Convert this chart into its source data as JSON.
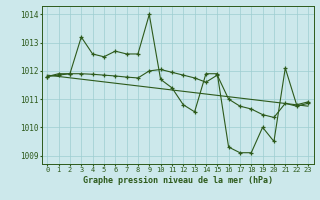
{
  "line1_x": [
    0,
    1,
    2,
    3,
    4,
    5,
    6,
    7,
    8,
    9,
    10,
    11,
    12,
    13,
    14,
    15,
    16,
    17,
    18,
    19,
    20,
    21,
    22,
    23
  ],
  "line1_y": [
    1011.8,
    1011.9,
    1011.9,
    1013.2,
    1012.6,
    1012.5,
    1012.7,
    1012.6,
    1012.6,
    1014.0,
    1011.7,
    1011.4,
    1010.8,
    1010.55,
    1011.9,
    1011.9,
    1009.3,
    1009.1,
    1009.1,
    1010.0,
    1009.5,
    1012.1,
    1010.8,
    1010.9
  ],
  "line2_x": [
    0,
    1,
    2,
    3,
    4,
    5,
    6,
    7,
    8,
    9,
    10,
    11,
    12,
    13,
    14,
    15,
    16,
    17,
    18,
    19,
    20,
    21,
    22,
    23
  ],
  "line2_y": [
    1011.8,
    1011.85,
    1011.9,
    1011.9,
    1011.88,
    1011.85,
    1011.82,
    1011.78,
    1011.75,
    1012.0,
    1012.05,
    1011.95,
    1011.85,
    1011.75,
    1011.6,
    1011.85,
    1011.0,
    1010.75,
    1010.65,
    1010.45,
    1010.35,
    1010.85,
    1010.75,
    1010.85
  ],
  "line3_x": [
    0,
    23
  ],
  "line3_y": [
    1011.85,
    1010.75
  ],
  "line_color": "#2d5a1b",
  "bg_color": "#cce8eb",
  "grid_color": "#9ecdd1",
  "xlabel": "Graphe pression niveau de la mer (hPa)",
  "ylim": [
    1008.7,
    1014.3
  ],
  "xlim": [
    -0.5,
    23.5
  ],
  "yticks": [
    1009,
    1010,
    1011,
    1012,
    1013,
    1014
  ],
  "xticks": [
    0,
    1,
    2,
    3,
    4,
    5,
    6,
    7,
    8,
    9,
    10,
    11,
    12,
    13,
    14,
    15,
    16,
    17,
    18,
    19,
    20,
    21,
    22,
    23
  ]
}
